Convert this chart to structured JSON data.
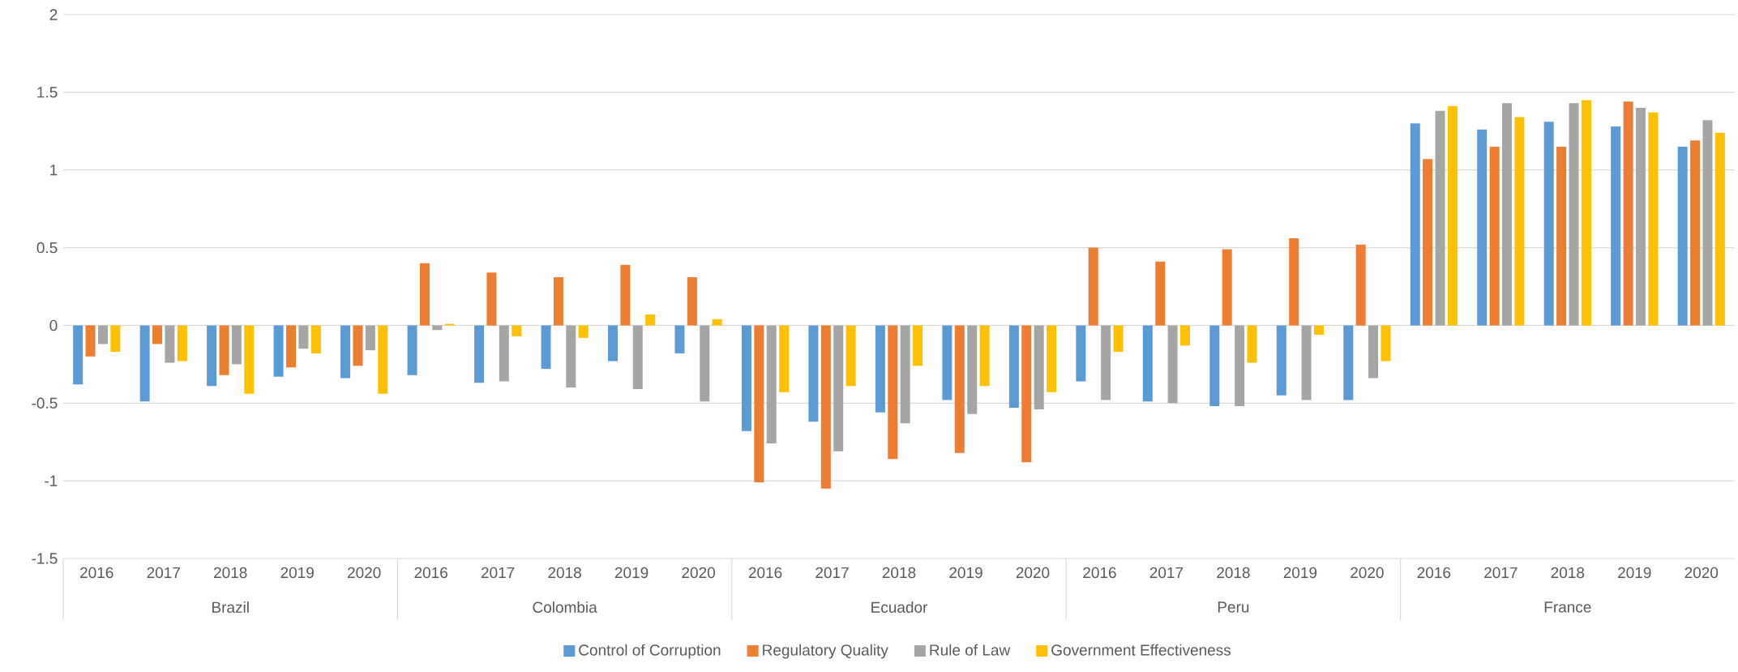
{
  "chart_data": {
    "type": "bar",
    "categories": [
      "2016",
      "2017",
      "2018",
      "2019",
      "2020",
      "2016",
      "2017",
      "2018",
      "2019",
      "2020",
      "2016",
      "2017",
      "2018",
      "2019",
      "2020",
      "2016",
      "2017",
      "2018",
      "2019",
      "2020",
      "2016",
      "2017",
      "2018",
      "2019",
      "2020"
    ],
    "annotations": [
      "Brazil",
      "Colombia",
      "Ecuador",
      "Peru",
      "France"
    ],
    "series": [
      {
        "name": "Control of Corruption",
        "color": "#5b9bd5",
        "values": [
          -0.38,
          -0.49,
          -0.39,
          -0.33,
          -0.34,
          -0.32,
          -0.37,
          -0.28,
          -0.23,
          -0.18,
          -0.68,
          -0.62,
          -0.56,
          -0.48,
          -0.53,
          -0.36,
          -0.49,
          -0.52,
          -0.45,
          -0.48,
          1.3,
          1.26,
          1.31,
          1.28,
          1.15
        ]
      },
      {
        "name": "Regulatory Quality",
        "color": "#ed7d31",
        "values": [
          -0.2,
          -0.12,
          -0.32,
          -0.27,
          -0.26,
          0.4,
          0.34,
          0.31,
          0.39,
          0.31,
          -1.01,
          -1.05,
          -0.86,
          -0.82,
          -0.88,
          0.5,
          0.41,
          0.49,
          0.56,
          0.52,
          1.07,
          1.15,
          1.15,
          1.44,
          1.19
        ]
      },
      {
        "name": "Rule of Law",
        "color": "#a5a5a5",
        "values": [
          -0.12,
          -0.24,
          -0.25,
          -0.15,
          -0.16,
          -0.03,
          -0.36,
          -0.4,
          -0.41,
          -0.49,
          -0.76,
          -0.81,
          -0.63,
          -0.57,
          -0.54,
          -0.48,
          -0.5,
          -0.52,
          -0.48,
          -0.34,
          1.38,
          1.43,
          1.43,
          1.4,
          1.32
        ]
      },
      {
        "name": "Government Effectiveness",
        "color": "#ffc000",
        "values": [
          -0.17,
          -0.23,
          -0.44,
          -0.18,
          -0.44,
          0.01,
          -0.07,
          -0.08,
          0.07,
          0.04,
          -0.43,
          -0.39,
          -0.26,
          -0.39,
          -0.43,
          -0.17,
          -0.13,
          -0.24,
          -0.06,
          -0.23,
          1.41,
          1.34,
          1.45,
          1.37,
          1.24
        ]
      }
    ],
    "ylim": [
      -1.5,
      2
    ],
    "yticks": [
      -1.5,
      -1,
      -0.5,
      0,
      0.5,
      1,
      1.5,
      2
    ],
    "grid": "y",
    "legend": "bottom"
  }
}
